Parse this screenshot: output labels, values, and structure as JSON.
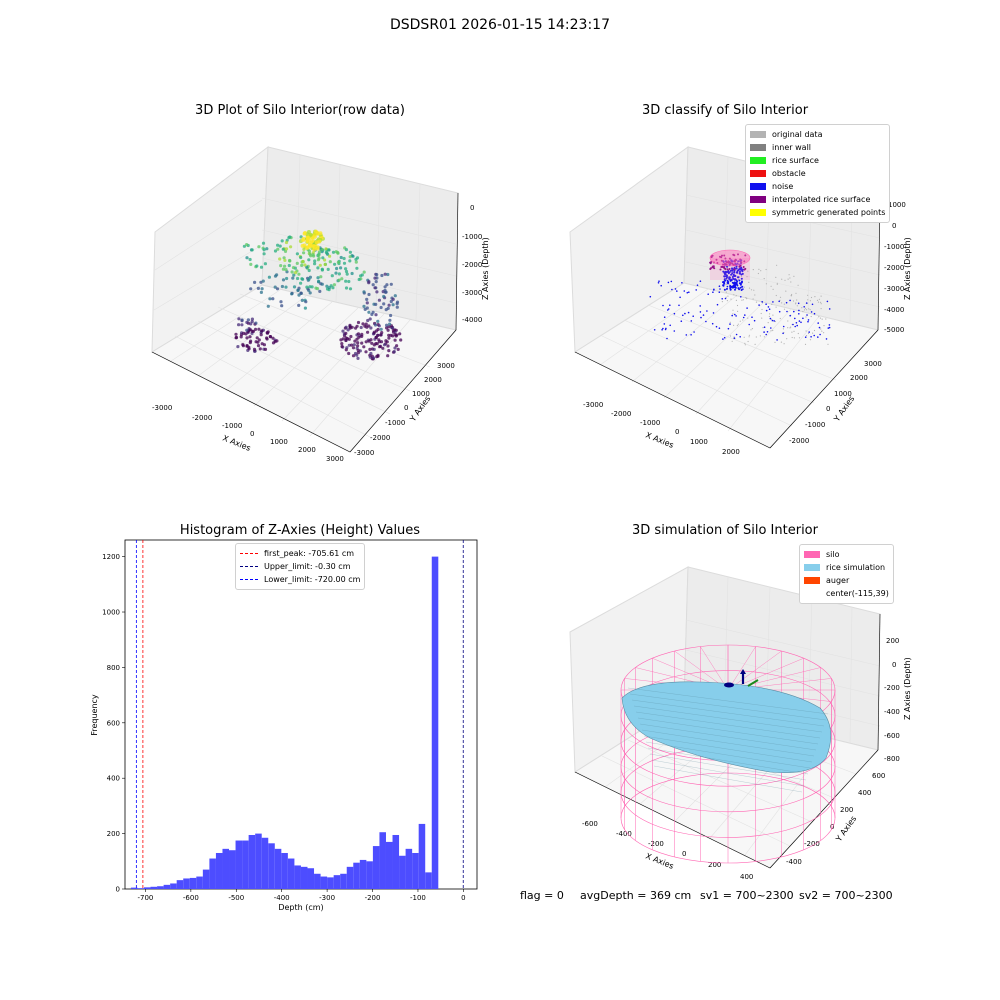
{
  "figure_title": "DSDSR01 2026-01-15 14:23:17",
  "colors": {
    "original": "#b3b3b3",
    "inner_wall": "#808080",
    "rice_surface": "#22ee22",
    "obstacle": "#ee1111",
    "noise": "#1111ee",
    "interp": "#800080",
    "sym": "#ffff00",
    "silo": "#ff66b3",
    "rice_sim": "#87ceeb",
    "auger": "#ff4500",
    "hist": "#4d4dff"
  },
  "chart_data": [
    {
      "type": "scatter",
      "title": "3D Plot of Silo Interior(row data)",
      "xlabel": "X Axies",
      "ylabel": "Y Axies",
      "zlabel": "Z Axies (Depth)",
      "x_ticks": [
        "-3000",
        "-2000",
        "-1000",
        "0",
        "1000",
        "2000",
        "3000"
      ],
      "y_ticks": [
        "-3000",
        "-2000",
        "-1000",
        "0",
        "1000",
        "2000",
        "3000"
      ],
      "z_ticks": [
        "-4000",
        "-3000",
        "-2000",
        "-1000",
        "0"
      ]
    },
    {
      "type": "scatter",
      "title": "3D classify of Silo Interior",
      "xlabel": "X Axies",
      "ylabel": "Y Axies",
      "zlabel": "Z Axies (Depth)",
      "x_ticks": [
        "-3000",
        "-2000",
        "-1000",
        "0",
        "1000",
        "2000"
      ],
      "y_ticks": [
        "-2000",
        "-1000",
        "0",
        "1000",
        "2000",
        "3000"
      ],
      "z_ticks": [
        "-5000",
        "-4000",
        "-3000",
        "-2000",
        "-1000",
        "0",
        "1000"
      ],
      "legend": [
        "original data",
        "inner wall",
        "rice surface",
        "obstacle",
        "noise",
        "interpolated rice surface",
        "symmetric generated points"
      ]
    },
    {
      "type": "bar",
      "title": "Histogram of Z-Axies (Height) Values",
      "xlabel": "Depth (cm)",
      "ylabel": "Frequency",
      "xlim": [
        -745,
        30
      ],
      "ylim": [
        0,
        1260
      ],
      "x_ticks": [
        "-700",
        "-600",
        "-500",
        "-400",
        "-300",
        "-200",
        "-100",
        "0"
      ],
      "y_ticks": [
        "0",
        "200",
        "400",
        "600",
        "800",
        "1000",
        "1200"
      ],
      "bin_start": -732,
      "bin_width": 14.4,
      "values": [
        5,
        3,
        6,
        8,
        10,
        15,
        20,
        32,
        38,
        40,
        45,
        70,
        110,
        130,
        145,
        140,
        175,
        175,
        195,
        200,
        185,
        165,
        145,
        130,
        110,
        85,
        80,
        75,
        55,
        45,
        42,
        50,
        55,
        80,
        95,
        105,
        100,
        155,
        205,
        170,
        195,
        120,
        145,
        130,
        235,
        60,
        1200
      ],
      "lines": [
        {
          "name": "first_peak: -705.61 cm",
          "x": -705.61,
          "color": "#ff0000"
        },
        {
          "name": "Upper_limit: -0.30 cm",
          "x": -0.3,
          "color": "#000080"
        },
        {
          "name": "Lower_limit: -720.00 cm",
          "x": -720.0,
          "color": "#0000ff"
        }
      ]
    },
    {
      "type": "area",
      "title": "3D simulation of Silo Interior",
      "xlabel": "X Axies",
      "ylabel": "Y Axies",
      "zlabel": "Z Axies (Depth)",
      "x_ticks": [
        "-600",
        "-400",
        "-200",
        "0",
        "200",
        "400"
      ],
      "y_ticks": [
        "-400",
        "-200",
        "0",
        "200",
        "400",
        "600"
      ],
      "z_ticks": [
        "-800",
        "-600",
        "-400",
        "-200",
        "0",
        "200"
      ],
      "legend": [
        "silo",
        "rice simulation",
        "auger",
        "center(-115,39)"
      ]
    }
  ],
  "footer": {
    "flag": "flag = 0",
    "avg": "avgDepth = 369 cm",
    "sv1": "sv1 = 700~2300",
    "sv2": "sv2 = 700~2300"
  }
}
